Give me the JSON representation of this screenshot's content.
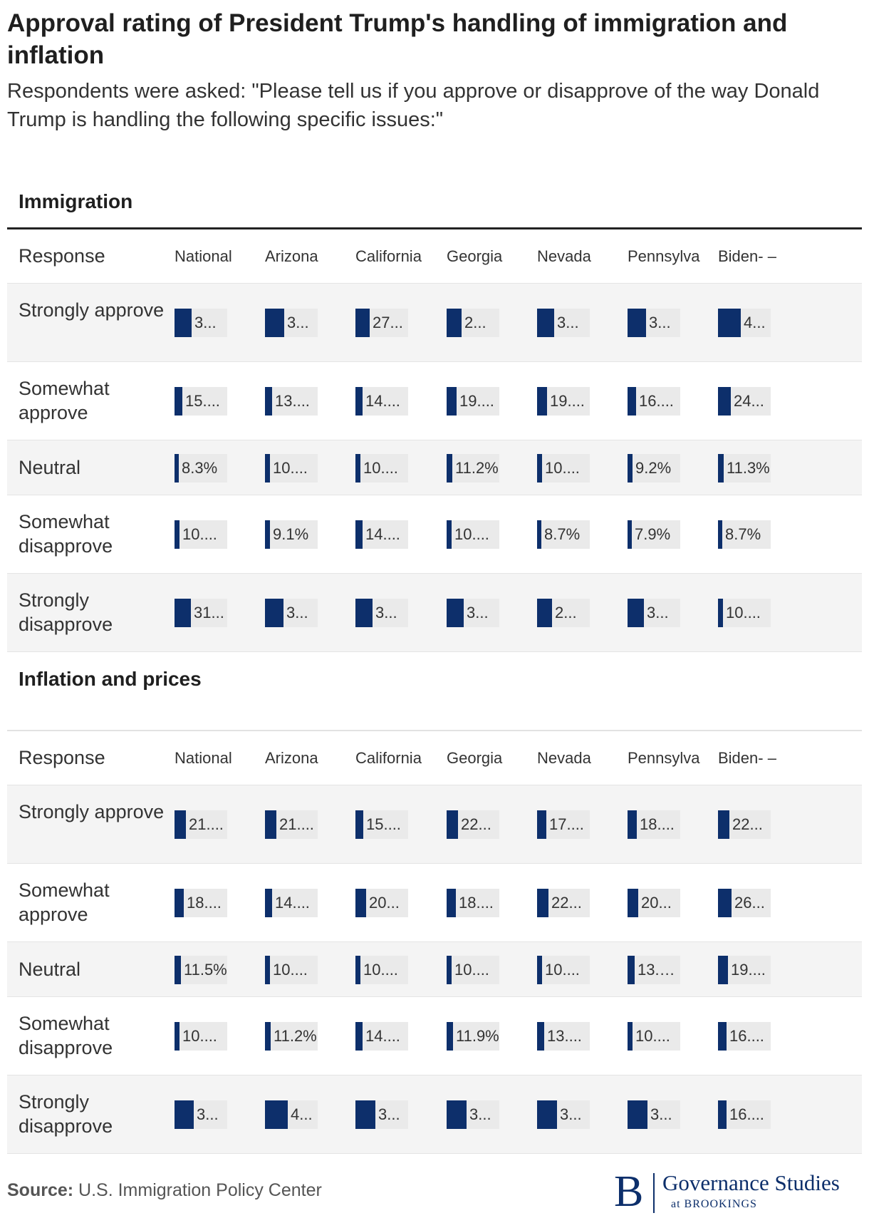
{
  "title": "Approval rating of President Trump's handling of immigration and inflation",
  "subtitle": "Respondents were asked: \"Please tell us if you approve or disapprove of the way Donald Trump is handling the following specific issues:\"",
  "source_label": "Source:",
  "source_text": "U.S. Immigration Policy Center",
  "logo": {
    "letter": "B",
    "name": "Governance Studies",
    "sub": "at BROOKINGS"
  },
  "colors": {
    "bar": "#0d2f6b",
    "cell_bg": "#eaeaea",
    "row_alt": "#f4f4f4"
  },
  "response_header": "Response",
  "chart_data": [
    {
      "type": "table",
      "title": "Immigration",
      "columns": [
        "National",
        "Arizona",
        "California",
        "Georgia",
        "Nevada",
        "Pennsylva",
        "Biden-\n–"
      ],
      "rows": [
        {
          "label": "Strongly approve",
          "values": [
            33,
            36,
            27,
            29,
            33,
            35,
            43
          ],
          "display": [
            "3...",
            "3...",
            "27...",
            "2...",
            "3...",
            "3...",
            "4..."
          ]
        },
        {
          "label": "Somewhat approve",
          "values": [
            15,
            13,
            14,
            19,
            19,
            16,
            24
          ],
          "display": [
            "15....",
            "13....",
            "14....",
            "19....",
            "19....",
            "16....",
            "24..."
          ]
        },
        {
          "label": "Neutral",
          "values": [
            8.3,
            10,
            10,
            11.2,
            10,
            9.2,
            11.3
          ],
          "display": [
            "8.3%",
            "10....",
            "10....",
            "11.2%",
            "10....",
            "9.2%",
            "11.3%"
          ]
        },
        {
          "label": "Somewhat disapprove",
          "values": [
            10,
            9.1,
            14,
            10,
            8.7,
            7.9,
            8.7
          ],
          "display": [
            "10....",
            "9.1%",
            "14....",
            "10....",
            "8.7%",
            "7.9%",
            "8.7%"
          ]
        },
        {
          "label": "Strongly disapprove",
          "values": [
            31,
            35,
            32,
            33,
            29,
            31,
            10
          ],
          "display": [
            "31...",
            "3...",
            "3...",
            "3...",
            "2...",
            "3...",
            "10...."
          ]
        }
      ]
    },
    {
      "type": "table",
      "title": "Inflation and prices",
      "columns": [
        "National",
        "Arizona",
        "California",
        "Georgia",
        "Nevada",
        "Pennsylva",
        "Biden-\n–"
      ],
      "rows": [
        {
          "label": "Strongly approve",
          "values": [
            21,
            21,
            15,
            22,
            17,
            18,
            22
          ],
          "display": [
            "21....",
            "21....",
            "15....",
            "22...",
            "17....",
            "18....",
            "22..."
          ]
        },
        {
          "label": "Somewhat approve",
          "values": [
            18,
            14,
            20,
            18,
            22,
            20,
            26
          ],
          "display": [
            "18....",
            "14....",
            "20...",
            "18....",
            "22...",
            "20...",
            "26..."
          ]
        },
        {
          "label": "Neutral",
          "values": [
            11.5,
            10,
            10,
            10,
            10,
            13.1,
            19
          ],
          "display": [
            "11.5%",
            "10....",
            "10....",
            "10....",
            "10....",
            "13.1%",
            "19...."
          ]
        },
        {
          "label": "Somewhat disapprove",
          "values": [
            10,
            11.2,
            14,
            11.9,
            13,
            10,
            16
          ],
          "display": [
            "10....",
            "11.2%",
            "14....",
            "11.9%",
            "13....",
            "10....",
            "16...."
          ]
        },
        {
          "label": "Strongly disapprove",
          "values": [
            37,
            43,
            38,
            38,
            38,
            38,
            16
          ],
          "display": [
            "3...",
            "4...",
            "3...",
            "3...",
            "3...",
            "3...",
            "16...."
          ]
        }
      ]
    }
  ]
}
